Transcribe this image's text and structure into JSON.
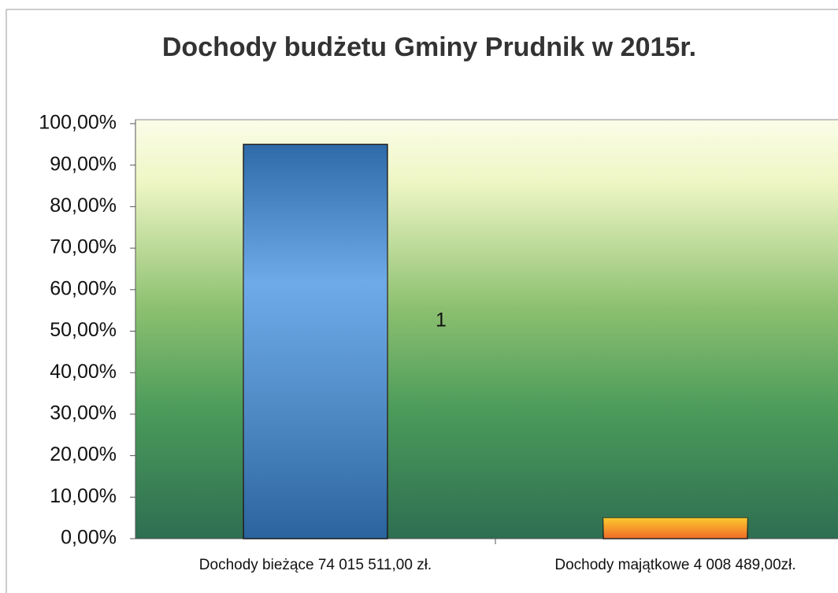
{
  "chart_data": {
    "type": "bar",
    "title": "Dochody budżetu Gminy Prudnik w 2015r.",
    "categories": [
      "Dochody bieżące 74 015 511,00 zł.",
      "Dochody majątkowe 4 008 489,00zł."
    ],
    "values": [
      95,
      5
    ],
    "colors": [
      "#3d8ee0",
      "#f06a28"
    ],
    "annotation": "1",
    "ylim": [
      0,
      100
    ],
    "yticks": [
      {
        "value": 0,
        "label": "0,00%"
      },
      {
        "value": 10,
        "label": "10,00%"
      },
      {
        "value": 20,
        "label": "20,00%"
      },
      {
        "value": 30,
        "label": "30,00%"
      },
      {
        "value": 40,
        "label": "40,00%"
      },
      {
        "value": 50,
        "label": "50,00%"
      },
      {
        "value": 60,
        "label": "60,00%"
      },
      {
        "value": 70,
        "label": "70,00%"
      },
      {
        "value": 80,
        "label": "80,00%"
      },
      {
        "value": 90,
        "label": "90,00%"
      },
      {
        "value": 100,
        "label": "100,00%"
      }
    ],
    "grid": false
  }
}
